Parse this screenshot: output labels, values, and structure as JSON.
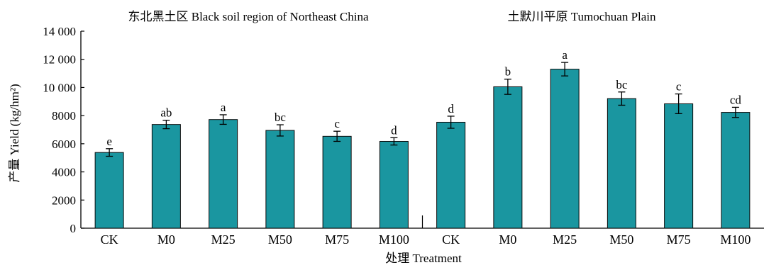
{
  "chart_data": {
    "type": "bar",
    "panel_titles": [
      "东北黑土区 Black soil region of Northeast China",
      "土默川平原 Tumochuan Plain"
    ],
    "ylabel": "产量 Yield (kg/hm²)",
    "xlabel": "处理 Treatment",
    "ylim": [
      0,
      14000
    ],
    "yticks": [
      {
        "value": 0,
        "label": "0"
      },
      {
        "value": 2000,
        "label": "2000"
      },
      {
        "value": 4000,
        "label": "4000"
      },
      {
        "value": 6000,
        "label": "6000"
      },
      {
        "value": 8000,
        "label": "8000"
      },
      {
        "value": 10000,
        "label": "10 000"
      },
      {
        "value": 12000,
        "label": "12 000"
      },
      {
        "value": 14000,
        "label": "14 000"
      }
    ],
    "categories": [
      "CK",
      "M0",
      "M25",
      "M50",
      "M75",
      "M100",
      "CK",
      "M0",
      "M25",
      "M50",
      "M75",
      "M100"
    ],
    "values": [
      5380,
      7370,
      7720,
      6950,
      6530,
      6170,
      7530,
      10050,
      11300,
      9210,
      8840,
      8230
    ],
    "errors": [
      270,
      300,
      340,
      400,
      360,
      260,
      430,
      540,
      480,
      470,
      700,
      360
    ],
    "significance_letters": [
      "e",
      "ab",
      "a",
      "bc",
      "c",
      "d",
      "d",
      "b",
      "a",
      "bc",
      "c",
      "cd"
    ],
    "bar_color": "#1a96a0",
    "grid": false,
    "legend": "none"
  }
}
